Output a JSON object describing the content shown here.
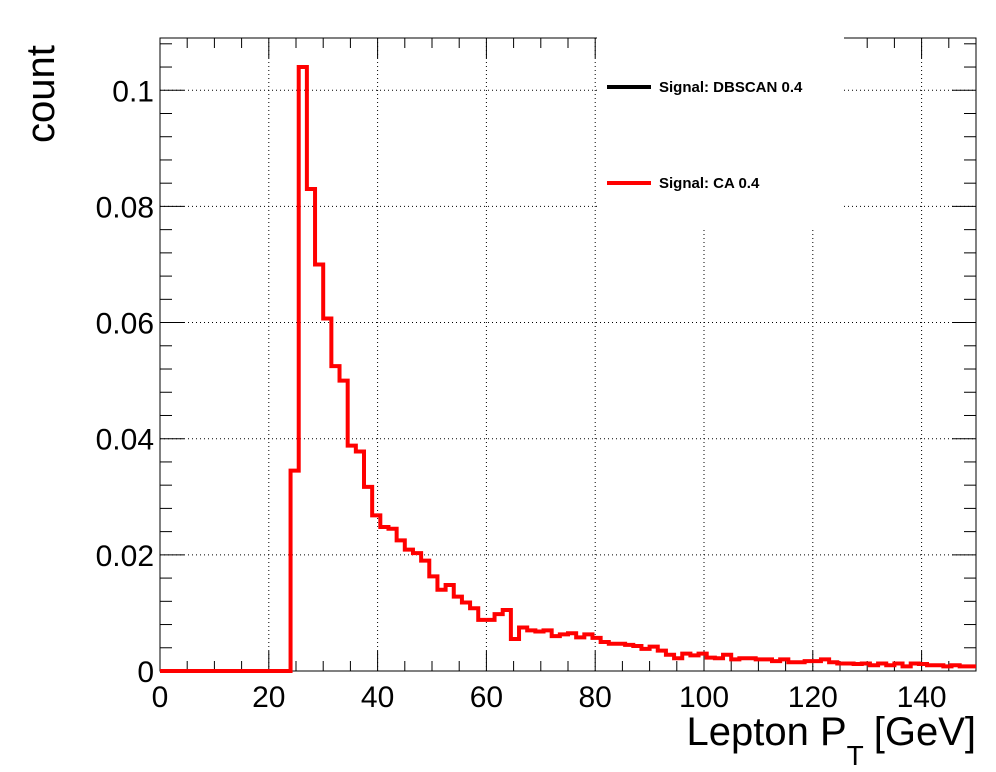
{
  "chart_data": {
    "type": "line",
    "xlabel": "Lepton P",
    "xlabel_subscript": "T",
    "xlabel_unit": "[GeV]",
    "ylabel": "count",
    "xlim": [
      0,
      150
    ],
    "ylim": [
      0,
      0.109
    ],
    "x_ticks": [
      0,
      20,
      40,
      60,
      80,
      100,
      120,
      140
    ],
    "x_tick_labels": [
      "0",
      "20",
      "40",
      "60",
      "80",
      "100",
      "120",
      "140"
    ],
    "y_ticks": [
      0,
      0.02,
      0.04,
      0.06,
      0.08,
      0.1
    ],
    "y_tick_labels": [
      "0",
      "0.02",
      "0.04",
      "0.06",
      "0.08",
      "0.1"
    ],
    "grid": true,
    "legend_position": "top-right",
    "bin_width": 1.5,
    "bin_edges_start": 0,
    "series": [
      {
        "name": "Signal: DBSCAN 0.4",
        "color": "#000000",
        "values": []
      },
      {
        "name": "Signal: CA 0.4",
        "color": "#ff0000",
        "values": [
          0,
          0,
          0,
          0,
          0,
          0,
          0,
          0,
          0,
          0,
          0,
          0,
          0,
          0,
          0,
          0,
          0.0345,
          0.104,
          0.083,
          0.07,
          0.0607,
          0.0525,
          0.05,
          0.0388,
          0.0378,
          0.0317,
          0.0268,
          0.0248,
          0.0245,
          0.0225,
          0.0209,
          0.0203,
          0.019,
          0.0163,
          0.014,
          0.0148,
          0.0128,
          0.0118,
          0.0108,
          0.0088,
          0.0088,
          0.0098,
          0.0105,
          0.0055,
          0.0075,
          0.007,
          0.0068,
          0.007,
          0.006,
          0.0063,
          0.0065,
          0.0058,
          0.0063,
          0.0057,
          0.005,
          0.0047,
          0.0047,
          0.0045,
          0.0043,
          0.0038,
          0.0042,
          0.0035,
          0.0028,
          0.0022,
          0.003,
          0.0027,
          0.003,
          0.0023,
          0.0022,
          0.0028,
          0.002,
          0.0022,
          0.0022,
          0.002,
          0.002,
          0.0017,
          0.002,
          0.0015,
          0.0015,
          0.0017,
          0.0017,
          0.002,
          0.0015,
          0.0013,
          0.0013,
          0.0012,
          0.0013,
          0.001,
          0.0013,
          0.001,
          0.0013,
          0.0008,
          0.0013,
          0.0012,
          0.001,
          0.001,
          0.0008,
          0.001,
          0.0008,
          0.0008
        ]
      }
    ]
  }
}
